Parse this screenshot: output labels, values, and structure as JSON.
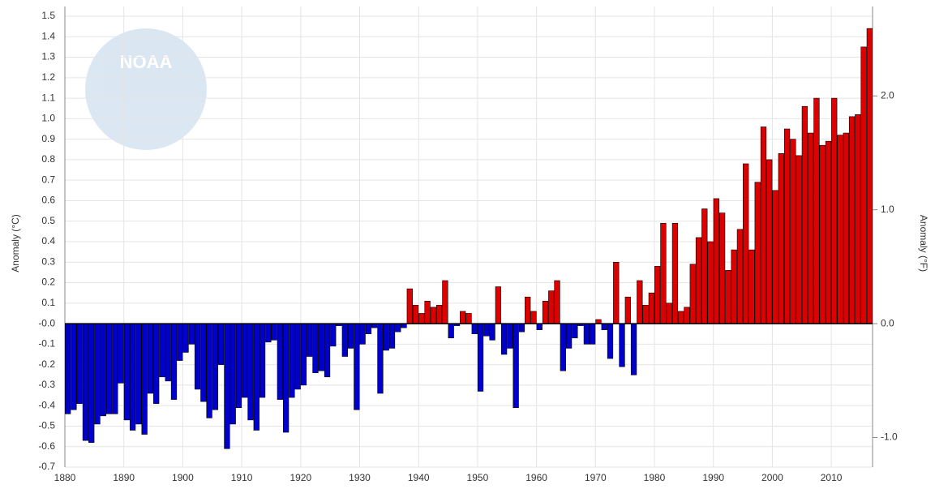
{
  "chart_data": {
    "type": "bar",
    "logo": "NOAA",
    "y_label": "Anomaly (°C)",
    "y2_label": "Anomaly (°F)",
    "x": [
      1880,
      1881,
      1882,
      1883,
      1884,
      1885,
      1886,
      1887,
      1888,
      1889,
      1890,
      1891,
      1892,
      1893,
      1894,
      1895,
      1896,
      1897,
      1898,
      1899,
      1900,
      1901,
      1902,
      1903,
      1904,
      1905,
      1906,
      1907,
      1908,
      1909,
      1910,
      1911,
      1912,
      1913,
      1914,
      1915,
      1916,
      1917,
      1918,
      1919,
      1920,
      1921,
      1922,
      1923,
      1924,
      1925,
      1926,
      1927,
      1928,
      1929,
      1930,
      1931,
      1932,
      1933,
      1934,
      1935,
      1936,
      1937,
      1938,
      1939,
      1940,
      1941,
      1942,
      1943,
      1944,
      1945,
      1946,
      1947,
      1948,
      1949,
      1950,
      1951,
      1952,
      1953,
      1954,
      1955,
      1956,
      1957,
      1958,
      1959,
      1960,
      1961,
      1962,
      1963,
      1964,
      1965,
      1966,
      1967,
      1968,
      1969,
      1970,
      1971,
      1972,
      1973,
      1974,
      1975,
      1976,
      1977,
      1978,
      1979,
      1980,
      1981,
      1982,
      1983,
      1984,
      1985,
      1986,
      1987,
      1988,
      1989,
      1990,
      1991,
      1992,
      1993,
      1994,
      1995,
      1996,
      1997,
      1998,
      1999,
      2000,
      2001,
      2002,
      2003,
      2004,
      2005,
      2006,
      2007,
      2008,
      2009,
      2010,
      2011,
      2012,
      2013,
      2014,
      2015,
      2016
    ],
    "values": [
      -0.44,
      -0.42,
      -0.39,
      -0.57,
      -0.58,
      -0.49,
      -0.45,
      -0.44,
      -0.44,
      -0.29,
      -0.47,
      -0.52,
      -0.49,
      -0.54,
      -0.34,
      -0.39,
      -0.26,
      -0.28,
      -0.37,
      -0.18,
      -0.14,
      -0.1,
      -0.32,
      -0.38,
      -0.46,
      -0.42,
      -0.2,
      -0.61,
      -0.49,
      -0.41,
      -0.36,
      -0.47,
      -0.52,
      -0.36,
      -0.09,
      -0.08,
      -0.37,
      -0.53,
      -0.36,
      -0.32,
      -0.3,
      -0.16,
      -0.24,
      -0.23,
      -0.26,
      -0.11,
      -0.01,
      -0.16,
      -0.12,
      -0.42,
      -0.1,
      -0.05,
      -0.02,
      -0.34,
      -0.13,
      -0.12,
      -0.04,
      -0.02,
      0.17,
      0.09,
      0.05,
      0.11,
      0.08,
      0.09,
      0.21,
      -0.07,
      -0.01,
      0.06,
      0.05,
      -0.05,
      -0.33,
      -0.06,
      -0.08,
      0.18,
      -0.15,
      -0.12,
      -0.41,
      -0.04,
      0.13,
      0.06,
      -0.03,
      0.11,
      0.16,
      0.21,
      -0.23,
      -0.12,
      -0.07,
      -0.01,
      -0.1,
      -0.1,
      0.02,
      -0.03,
      -0.17,
      0.3,
      -0.21,
      0.13,
      -0.25,
      0.21,
      0.09,
      0.15,
      0.28,
      0.49,
      0.1,
      0.49,
      0.06,
      0.08,
      0.29,
      0.42,
      0.56,
      0.4,
      0.61,
      0.54,
      0.26,
      0.36,
      0.46,
      0.78,
      0.36,
      0.69,
      0.96,
      0.8,
      0.65,
      0.83,
      0.95,
      0.9,
      0.82,
      1.06,
      0.93,
      1.1,
      0.87,
      0.89,
      1.1,
      0.92,
      0.93,
      1.01,
      1.02,
      1.35,
      1.44
    ],
    "positive_color": "#dd0000",
    "negative_color": "#0000cc",
    "xlim": [
      1880,
      2017
    ],
    "xticks": [
      1880,
      1890,
      1900,
      1910,
      1920,
      1930,
      1940,
      1950,
      1960,
      1970,
      1980,
      1990,
      2000,
      2010
    ],
    "ylim": [
      -0.7,
      1.5
    ],
    "yticks": [
      1.5,
      1.4,
      1.3,
      1.2,
      1.1,
      {
        "value": 1.0,
        "label": "1.0"
      },
      0.9,
      0.8,
      0.7,
      0.6,
      0.5,
      0.4,
      0.3,
      0.2,
      0.1,
      {
        "value": 0,
        "label": "-0.0"
      },
      -0.1,
      -0.2,
      -0.3,
      -0.4,
      -0.5,
      -0.6,
      -0.7
    ],
    "y2lim": [
      -1.26,
      2.7
    ],
    "y2ticks": [
      {
        "value": 2.0,
        "label": "2.0"
      },
      {
        "value": 1.0,
        "label": "1.0"
      },
      {
        "value": 0,
        "label": "0.0"
      },
      {
        "value": -1.0,
        "label": "-1.0"
      }
    ],
    "grid": true
  }
}
